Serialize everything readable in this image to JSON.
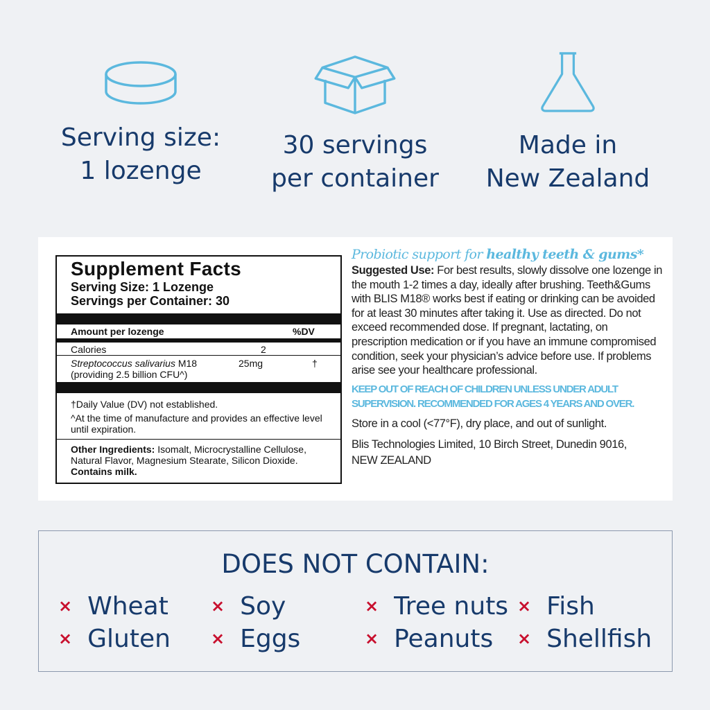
{
  "features": [
    {
      "icon": "lozenge-icon",
      "line1": "Serving size:",
      "line2": "1 lozenge"
    },
    {
      "icon": "box-icon",
      "line1": "30 servings",
      "line2": "per container"
    },
    {
      "icon": "flask-icon",
      "line1": "Made in",
      "line2": "New Zealand"
    }
  ],
  "facts": {
    "title": "Supplement Facts",
    "serving_size": "Serving Size: 1 Lozenge",
    "servings": "Servings per Container: 30",
    "amount_header": "Amount per lozenge",
    "dv_header": "%DV",
    "calories_label": "Calories",
    "calories_value": "2",
    "ingredient_name": "Streptococcus salivarius",
    "ingredient_suffix": " M18",
    "ingredient_amount": "25mg",
    "ingredient_dv": "†",
    "ingredient_note": "(providing 2.5 billion CFU^)",
    "footnote1": "†Daily Value (DV) not established.",
    "footnote2": "^At the time of manufacture and provides an effective level until expiration.",
    "other_label": "Other Ingredients:",
    "other_text": " Isomalt, Microcrystalline Cellulose, Natural Flavor, Magnesium Stearate, Silicon Dioxide.",
    "contains": "Contains milk."
  },
  "info": {
    "tagline_a": "Probiotic support for ",
    "tagline_b": "healthy teeth & gums*",
    "use_label": "Suggested Use:",
    "use_text": " For best results, slowly dissolve one lozenge in the mouth 1-2 times a day, ideally after brushing. Teeth&Gums with BLIS M18® works best if eating or drinking can be avoided for at least 30 minutes after taking it. Use as directed. Do not exceed recommended dose. If pregnant, lactating, on prescription medication or if you have an immune compromised condition, seek your physician’s advice before use. If problems arise see your healthcare professional.",
    "warning": "KEEP OUT OF REACH OF CHILDREN UNLESS UNDER ADULT SUPERVISION. RECOMMENDED FOR AGES 4 YEARS AND OVER.",
    "storage": "Store in a cool (<77°F), dry place, and out of sunlight.",
    "address": "Blis Technologies Limited, 10 Birch Street, Dunedin 9016, NEW ZEALAND"
  },
  "allergens": {
    "title": "DOES NOT CONTAIN:",
    "mark": "×",
    "items": [
      "Wheat",
      "Soy",
      "Tree nuts",
      "Fish",
      "Gluten",
      "Eggs",
      "Peanuts",
      "Shellfish"
    ]
  },
  "colors": {
    "navy": "#173a6b",
    "light_blue": "#5bb8de",
    "red": "#c8102e",
    "background": "#eff1f4"
  }
}
